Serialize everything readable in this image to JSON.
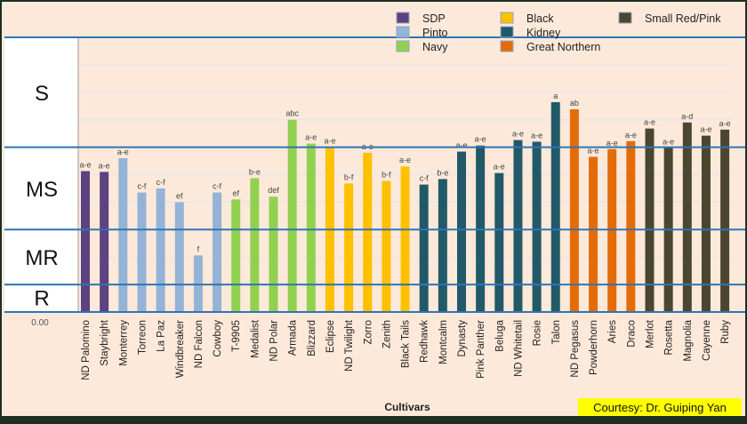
{
  "chart_data": {
    "type": "bar",
    "title": "",
    "xlabel": "Cultivars",
    "ylabel": "",
    "ylim": [
      0,
      10
    ],
    "y_tick_visible": "0.00",
    "grid": true,
    "legend_position": "top-right",
    "categories": [
      "ND Palomino",
      "Staybright",
      "Monterrey",
      "Torreon",
      "La Paz",
      "Windbreaker",
      "ND Falcon",
      "Cowboy",
      "T-9905",
      "Medalist",
      "ND Polar",
      "Armada",
      "Blizzard",
      "Eclipse",
      "ND Twilight",
      "Zorro",
      "Zenith",
      "Black Tails",
      "Redhawk",
      "Montcalm",
      "Dynasty",
      "Pink Panther",
      "Beluga",
      "ND Whitetail",
      "Rosie",
      "Talon",
      "ND Pegasus",
      "Powderhorn",
      "Aries",
      "Draco",
      "Merlot",
      "Rosetta",
      "Magnolia",
      "Cayenne",
      "Ruby"
    ],
    "values": [
      5.13,
      5.1,
      5.6,
      4.35,
      4.5,
      4.0,
      2.06,
      4.35,
      4.1,
      4.87,
      4.2,
      7.0,
      6.13,
      6.0,
      4.68,
      5.8,
      4.77,
      5.3,
      4.64,
      4.84,
      5.84,
      6.06,
      5.06,
      6.26,
      6.2,
      7.64,
      7.38,
      5.65,
      5.93,
      6.22,
      6.68,
      5.97,
      6.9,
      6.42,
      6.64
    ],
    "groups": [
      "SDP",
      "SDP",
      "Pinto",
      "Pinto",
      "Pinto",
      "Pinto",
      "Pinto",
      "Pinto",
      "Navy",
      "Navy",
      "Navy",
      "Navy",
      "Navy",
      "Black",
      "Black",
      "Black",
      "Black",
      "Black",
      "Kidney",
      "Kidney",
      "Kidney",
      "Kidney",
      "Kidney",
      "Kidney",
      "Kidney",
      "Kidney",
      "Great Northern",
      "Great Northern",
      "Great Northern",
      "Great Northern",
      "Small Red/Pink",
      "Small Red/Pink",
      "Small Red/Pink",
      "Small Red/Pink",
      "Small Red/Pink"
    ],
    "significance_letters": [
      "a-e",
      "a-e",
      "a-e",
      "c-f",
      "c-f",
      "ef",
      "f",
      "c-f",
      "ef",
      "b-e",
      "def",
      "abc",
      "a-e",
      "a-e",
      "b-f",
      "a-e",
      "b-f",
      "a-e",
      "c-f",
      "b-e",
      "a-e",
      "a-e",
      "a-e",
      "a-e",
      "a-e",
      "a",
      "ab",
      "a-e",
      "a-e",
      "a-e",
      "a-e",
      "a-e",
      "a-d",
      "a-e",
      "a-e"
    ],
    "legend": [
      {
        "name": "SDP",
        "color": "#5b4280"
      },
      {
        "name": "Pinto",
        "color": "#95b3d7"
      },
      {
        "name": "Navy",
        "color": "#92d050"
      },
      {
        "name": "Black",
        "color": "#ffc000"
      },
      {
        "name": "Kidney",
        "color": "#215968"
      },
      {
        "name": "Great Northern",
        "color": "#e36c09"
      },
      {
        "name": "Small Red/Pink",
        "color": "#4a4630"
      }
    ],
    "resistance_classes": [
      {
        "label": "S",
        "range": [
          6,
          10
        ]
      },
      {
        "label": "MS",
        "range": [
          3,
          6
        ]
      },
      {
        "label": "MR",
        "range": [
          1,
          3
        ]
      },
      {
        "label": "R",
        "range": [
          0,
          1
        ]
      }
    ]
  },
  "courtesy": "Courtesy: Dr. Guiping Yan",
  "colors": {
    "background": "#fde9d9",
    "band_line": "#2e75b6",
    "courtesy_bg": "#ffff00"
  }
}
